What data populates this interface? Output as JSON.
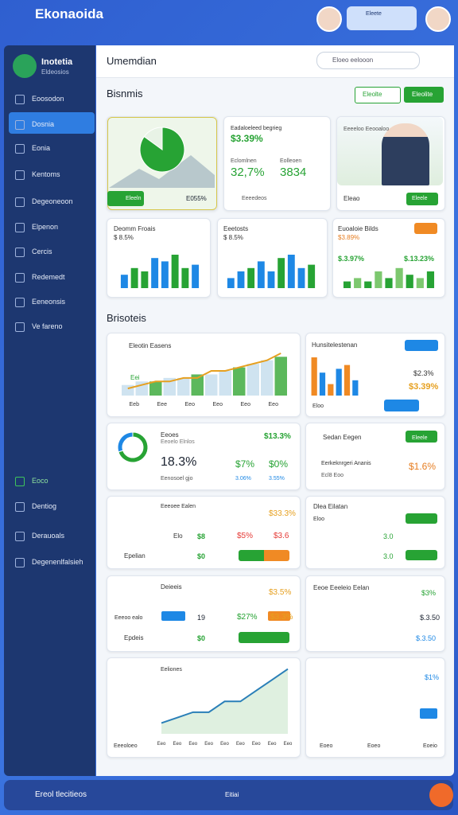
{
  "header": {
    "logo": "Ekonaoida",
    "pill": "Eleete"
  },
  "sidebar": {
    "brand": "Inotetia",
    "sub": "Eldeosios",
    "nav": [
      "Eoosodon",
      "Dosnia",
      "Eonia",
      "Kentoms",
      "Degeoneoon",
      "Elpenon",
      "Cercis",
      "Redemedt",
      "Eeneonsis",
      "Ve fareno"
    ],
    "nav2": [
      "Eoco",
      "Dentiog",
      "Derauoals",
      "Degenenlfalsieh"
    ]
  },
  "main": {
    "title": "Umemdian",
    "search": "Eloeo eelooon",
    "section1": "Bisnmis",
    "buttons": [
      "Eleolte",
      "Eleolite"
    ],
    "section2": "Brisoteis"
  },
  "cards": {
    "pie": {
      "button": "Eleeln",
      "stat": "E055%"
    },
    "kpi": {
      "title": "Eadaloeleed begrieg",
      "value": "$3.39%",
      "label1": "Eclomlnen",
      "label2": "Eolleoen",
      "v1": "32,7%",
      "v2": "3834",
      "foot": "Eeeedeos"
    },
    "person": {
      "title": "Eeeeloo Eeooaloo",
      "label": "Eleao",
      "button": "Eleele"
    },
    "bars1": {
      "title": "Deomm Froais",
      "value": "$ 8.5%"
    },
    "bars2": {
      "title": "Eeetosts",
      "value": "$ 8.5%"
    },
    "bars3": {
      "title": "Euoaloie Bilds",
      "value": "$3.89%",
      "v1": "$.3.97%",
      "v2": "$.13.23%"
    },
    "combo": {
      "title": "Eleotin Easens",
      "mark": "Eei"
    },
    "side": {
      "title": "Hunsitelestenan",
      "v1": "$2.3%",
      "v2": "$3.39%",
      "foot": "Eloo"
    },
    "donut": {
      "title": "Eeoes",
      "sub": "Eeoelo Elnlos",
      "top": "$13.3%",
      "big": "18.3%",
      "v1": "$7%",
      "v2": "$0%",
      "foot": "Eenosoel gjo",
      "f1": "3.06%",
      "f2": "3.55%"
    },
    "sedan": {
      "title": "Sedan Eegen",
      "row": "Eerkeknrgeri Ananis",
      "value": "$1.6%",
      "foot": "Ecl8 Eoo",
      "button": "Eleele"
    },
    "list1": {
      "title": "Eeeoee Ealen",
      "top": "$33.3%",
      "row1": "Elo",
      "v1": "$8",
      "v2": "$5%",
      "v3": "$3.6",
      "row2": "Epelian",
      "v4": "$0"
    },
    "list2": {
      "title": "Dlea Eilatan",
      "r1": "Eloo",
      "r2": "3.0",
      "r3": "3.0"
    },
    "list3": {
      "title": "Deieeis",
      "top": "$3.5%",
      "row1": "Eeeoo ealo",
      "v1": "19",
      "v2": "$27%",
      "v3": "$3.3%",
      "row2": "Epdeis",
      "v4": "$0"
    },
    "list4": {
      "title": "Eeoe Eeeleio Eelan",
      "v1": "$3%",
      "v2": "$.3.50",
      "v3": "$.3.50"
    },
    "line": {
      "title": "Eeliones",
      "foot": "Eeeoloeo"
    },
    "empty": {
      "value": "$1%",
      "f1": "Eoeo",
      "f2": "Eoeo",
      "f3": "Eoeio"
    }
  },
  "charts": {
    "pie": {
      "values": [
        85,
        15
      ],
      "colors": [
        "#27a334",
        "#e8f3e6"
      ]
    },
    "bars1": {
      "values": [
        4,
        6,
        5,
        9,
        8,
        10,
        6,
        7
      ],
      "ylim": [
        0,
        10
      ]
    },
    "bars2": {
      "values": [
        3,
        5,
        6,
        8,
        5,
        9,
        10,
        6,
        7
      ],
      "ylim": [
        0,
        10
      ]
    },
    "bars3": {
      "values": [
        2,
        3,
        2,
        5,
        3,
        6,
        4,
        3,
        5
      ],
      "ylim": [
        0,
        10
      ]
    },
    "combo": {
      "categories": [
        "Eeb",
        null,
        "Eee",
        null,
        "Eeo",
        null,
        "Eeo",
        null,
        "Eeo",
        null,
        "Eeo",
        null
      ],
      "bars": [
        3,
        4,
        4,
        5,
        5,
        6,
        6,
        7,
        8,
        9,
        10,
        11
      ],
      "line": [
        2,
        3,
        4,
        4,
        5,
        5,
        7,
        7,
        8,
        9,
        10,
        12
      ],
      "ylim": [
        0,
        14
      ]
    },
    "side": {
      "values": [
        10,
        6,
        3,
        7,
        8,
        4
      ],
      "ylim": [
        0,
        10
      ]
    },
    "donut": {
      "values": [
        70,
        30
      ],
      "colors": [
        "#27a334",
        "#1e88e5"
      ]
    },
    "line": {
      "values": [
        2,
        3,
        4,
        4,
        6,
        6,
        8,
        10,
        12
      ],
      "ylim": [
        0,
        14
      ],
      "categories": [
        "Eeo",
        "Eeo",
        "Eeo",
        "Eeo",
        "Eeo",
        "Eeo",
        "Eeo",
        "Eeo",
        "Eeo"
      ]
    }
  },
  "footer": {
    "label": "Ereol tlecitieos",
    "item": "Eitiai"
  }
}
